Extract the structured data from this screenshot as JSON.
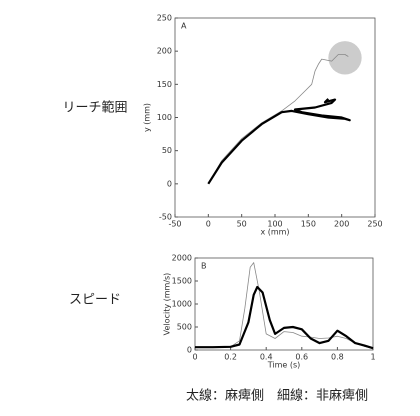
{
  "chart_data": [
    {
      "type": "line",
      "panel": "A",
      "row_label": "リーチ範囲",
      "xlabel": "x (mm)",
      "ylabel": "y (mm)",
      "xlim": [
        -50,
        250
      ],
      "xticks": [
        -50,
        0,
        50,
        100,
        150,
        200,
        250
      ],
      "ylim": [
        -50,
        250
      ],
      "yticks": [
        -50,
        0,
        50,
        100,
        150,
        200,
        250
      ],
      "circle": {
        "x": 205,
        "y": 190,
        "r": 25,
        "color": "#cccccc"
      },
      "series": [
        {
          "color": "#888888",
          "width": 0.8,
          "x": [
            0,
            20,
            50,
            80,
            110,
            130,
            145,
            155,
            160,
            165,
            170,
            185,
            195,
            205,
            210
          ],
          "values": [
            0,
            35,
            68,
            92,
            110,
            125,
            140,
            150,
            170,
            180,
            188,
            185,
            195,
            195,
            192
          ]
        },
        {
          "color": "#000000",
          "width": 2.2,
          "x": [
            0,
            20,
            50,
            80,
            110,
            125,
            150,
            180,
            205,
            212,
            200,
            170,
            140,
            130,
            160,
            185,
            190,
            175,
            180
          ],
          "values": [
            0,
            32,
            65,
            90,
            108,
            110,
            105,
            100,
            98,
            96,
            100,
            103,
            108,
            112,
            115,
            122,
            127,
            123,
            128
          ]
        }
      ]
    },
    {
      "type": "line",
      "panel": "B",
      "row_label": "スピード",
      "xlabel": "Time (s)",
      "ylabel": "Velocity (mm/s)",
      "xlim": [
        0,
        1
      ],
      "xticks": [
        0,
        0.2,
        0.4,
        0.6,
        0.8,
        1
      ],
      "ylim": [
        0,
        2000
      ],
      "yticks": [
        0,
        500,
        1000,
        1500,
        2000
      ],
      "series": [
        {
          "color": "#888888",
          "width": 0.8,
          "x": [
            0,
            0.1,
            0.2,
            0.25,
            0.28,
            0.31,
            0.33,
            0.36,
            0.4,
            0.45,
            0.5,
            0.55,
            0.6,
            0.65,
            0.7,
            0.75,
            0.8,
            0.85,
            0.9,
            0.95,
            1
          ],
          "values": [
            60,
            60,
            70,
            200,
            900,
            1800,
            1900,
            1300,
            350,
            250,
            400,
            380,
            300,
            280,
            250,
            260,
            300,
            250,
            150,
            80,
            40
          ]
        },
        {
          "color": "#000000",
          "width": 2.2,
          "x": [
            0,
            0.1,
            0.2,
            0.25,
            0.3,
            0.33,
            0.35,
            0.38,
            0.42,
            0.45,
            0.5,
            0.55,
            0.6,
            0.65,
            0.7,
            0.75,
            0.8,
            0.85,
            0.9,
            0.95,
            1
          ],
          "values": [
            60,
            60,
            70,
            120,
            600,
            1200,
            1370,
            1250,
            650,
            350,
            480,
            500,
            450,
            250,
            150,
            200,
            420,
            300,
            150,
            100,
            40
          ]
        }
      ]
    }
  ],
  "caption": "太線：麻痺側　細線：非麻痺側"
}
